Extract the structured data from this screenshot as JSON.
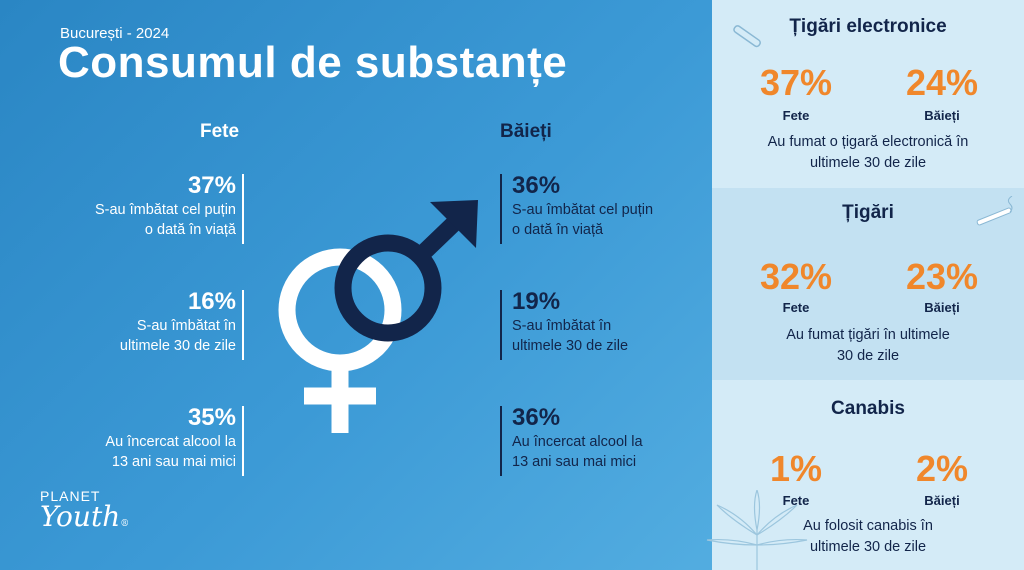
{
  "header": {
    "location_year": "București - 2024",
    "title": "Consumul de substanțe"
  },
  "columns": {
    "girls": "Fete",
    "boys": "Băieți"
  },
  "stats": {
    "girls": [
      {
        "pct": "37%",
        "line1": "S-au îmbătat cel puțin",
        "line2": "o dată în viață"
      },
      {
        "pct": "16%",
        "line1": "S-au îmbătat în",
        "line2": "ultimele 30 de zile"
      },
      {
        "pct": "35%",
        "line1": "Au încercat alcool la",
        "line2": "13 ani sau mai mici"
      }
    ],
    "boys": [
      {
        "pct": "36%",
        "line1": "S-au îmbătat cel puțin",
        "line2": "o dată în viață"
      },
      {
        "pct": "19%",
        "line1": "S-au îmbătat în",
        "line2": "ultimele 30 de zile"
      },
      {
        "pct": "36%",
        "line1": "Au încercat alcool la",
        "line2": "13 ani sau mai mici"
      }
    ]
  },
  "panels": [
    {
      "title": "Țigări electronice",
      "girls_pct": "37%",
      "boys_pct": "24%",
      "girls_label": "Fete",
      "boys_label": "Băieți",
      "note1": "Au fumat o țigară electronică în",
      "note2": "ultimele 30 de zile"
    },
    {
      "title": "Țigări",
      "girls_pct": "32%",
      "boys_pct": "23%",
      "girls_label": "Fete",
      "boys_label": "Băieți",
      "note1": "Au fumat țigări în ultimele",
      "note2": "30 de zile"
    },
    {
      "title": "Canabis",
      "girls_pct": "1%",
      "boys_pct": "2%",
      "girls_label": "Fete",
      "boys_label": "Băieți",
      "note1": "Au folosit canabis în",
      "note2": "ultimele 30 de zile"
    }
  ],
  "logo": {
    "line1": "PLANET",
    "line2": "Youth",
    "mark": "®"
  },
  "colors": {
    "accent": "#f0872b",
    "navy": "#12254a",
    "background": "#3c9ad6",
    "panel": "#d4ebf7"
  },
  "icons": [
    "female-symbol-icon",
    "male-symbol-icon",
    "e-cigarette-icon",
    "cigarette-icon",
    "cannabis-leaf-icon"
  ]
}
